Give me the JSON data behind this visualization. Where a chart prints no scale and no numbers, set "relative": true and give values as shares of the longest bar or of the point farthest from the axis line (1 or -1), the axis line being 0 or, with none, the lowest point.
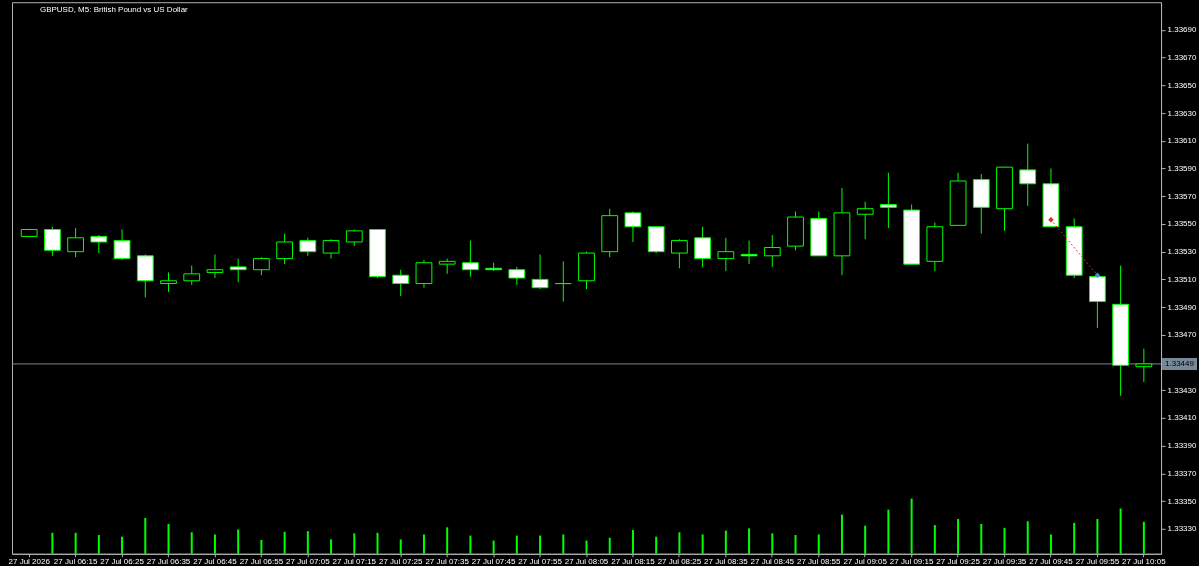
{
  "chart_data": [
    {
      "type": "candlestick",
      "title": "GBPUSD, M5: British Pound vs US Dollar",
      "categories": [
        "27 Jul 2026",
        null,
        "27 Jul 06:15",
        null,
        "27 Jul 06:25",
        null,
        "27 Jul 06:35",
        null,
        "27 Jul 06:45",
        null,
        "27 Jul 06:55",
        null,
        "27 Jul 07:05",
        null,
        "27 Jul 07:15",
        null,
        "27 Jul 07:25",
        null,
        "27 Jul 07:35",
        null,
        "27 Jul 07:45",
        null,
        "27 Jul 07:55",
        null,
        "27 Jul 08:05",
        null,
        "27 Jul 08:15",
        null,
        "27 Jul 08:25",
        null,
        "27 Jul 08:35",
        null,
        "27 Jul 08:45",
        null,
        "27 Jul 08:55",
        null,
        "27 Jul 09:05",
        null,
        "27 Jul 09:15",
        null,
        "27 Jul 09:25",
        null,
        "27 Jul 09:35",
        null,
        "27 Jul 09:45",
        null,
        "27 Jul 09:55",
        null,
        "27 Jul 10:05"
      ],
      "ohlc": [
        [
          1.33541,
          1.33546,
          1.33541,
          1.33546
        ],
        [
          1.33546,
          1.33548,
          1.33527,
          1.33531
        ],
        [
          1.3353,
          1.33547,
          1.33526,
          1.3354
        ],
        [
          1.33541,
          1.33542,
          1.33529,
          1.33537
        ],
        [
          1.33538,
          1.33546,
          1.33524,
          1.33525
        ],
        [
          1.33527,
          1.33528,
          1.33497,
          1.33509
        ],
        [
          1.33507,
          1.33515,
          1.33501,
          1.33509
        ],
        [
          1.33509,
          1.3352,
          1.33506,
          1.33514
        ],
        [
          1.33515,
          1.33528,
          1.33511,
          1.33517
        ],
        [
          1.33519,
          1.33525,
          1.33508,
          1.33517
        ],
        [
          1.33517,
          1.33526,
          1.33513,
          1.33525
        ],
        [
          1.33525,
          1.33543,
          1.33521,
          1.33537
        ],
        [
          1.33538,
          1.3354,
          1.33527,
          1.3353
        ],
        [
          1.33529,
          1.33539,
          1.33525,
          1.33538
        ],
        [
          1.33537,
          1.33546,
          1.33534,
          1.33545
        ],
        [
          1.33546,
          1.33546,
          1.33511,
          1.33512
        ],
        [
          1.33513,
          1.33517,
          1.33498,
          1.33507
        ],
        [
          1.33507,
          1.33524,
          1.33504,
          1.33522
        ],
        [
          1.33521,
          1.33525,
          1.33514,
          1.33523
        ],
        [
          1.33522,
          1.33538,
          1.33512,
          1.33517
        ],
        [
          1.33518,
          1.33522,
          1.33516,
          1.33517
        ],
        [
          1.33517,
          1.33519,
          1.33506,
          1.33511
        ],
        [
          1.3351,
          1.33528,
          1.33503,
          1.33504
        ],
        [
          1.33507,
          1.33523,
          1.33494,
          1.33507
        ],
        [
          1.33509,
          1.3353,
          1.33503,
          1.33529
        ],
        [
          1.3353,
          1.33561,
          1.33526,
          1.33556
        ],
        [
          1.33558,
          1.33559,
          1.33537,
          1.33548
        ],
        [
          1.33548,
          1.33548,
          1.33529,
          1.3353
        ],
        [
          1.33529,
          1.33539,
          1.33518,
          1.33538
        ],
        [
          1.3354,
          1.33548,
          1.33519,
          1.33525
        ],
        [
          1.33525,
          1.3354,
          1.33516,
          1.3353
        ],
        [
          1.33528,
          1.33538,
          1.33521,
          1.33527
        ],
        [
          1.33527,
          1.33542,
          1.33519,
          1.33533
        ],
        [
          1.33534,
          1.33559,
          1.33531,
          1.33555
        ],
        [
          1.33554,
          1.33559,
          1.33527,
          1.33527
        ],
        [
          1.33527,
          1.33576,
          1.33513,
          1.33558
        ],
        [
          1.33557,
          1.33566,
          1.33539,
          1.33561
        ],
        [
          1.33564,
          1.33587,
          1.33547,
          1.33562
        ],
        [
          1.3356,
          1.33564,
          1.33521,
          1.33521
        ],
        [
          1.33523,
          1.33551,
          1.33516,
          1.33548
        ],
        [
          1.33549,
          1.33587,
          1.33549,
          1.33581
        ],
        [
          1.33582,
          1.33586,
          1.33543,
          1.33562
        ],
        [
          1.33561,
          1.33591,
          1.33545,
          1.33591
        ],
        [
          1.33589,
          1.33608,
          1.33563,
          1.33579
        ],
        [
          1.33579,
          1.3359,
          1.33548,
          1.33548
        ],
        [
          1.33548,
          1.33554,
          1.33511,
          1.33513
        ],
        [
          1.33512,
          1.33512,
          1.33475,
          1.33494
        ],
        [
          1.33492,
          1.3352,
          1.33426,
          1.33448
        ],
        [
          1.33447,
          1.3346,
          1.33436,
          1.33449
        ]
      ],
      "color": "#00ff00",
      "colors": [
        "#000000",
        "#ffffff",
        "#000000",
        "#ffffff",
        "#ffffff",
        "#ffffff",
        "#000000",
        "#000000",
        "#000000",
        "#ffffff",
        "#000000",
        "#000000",
        "#ffffff",
        "#000000",
        "#000000",
        "#ffffff",
        "#ffffff",
        "#000000",
        "#000000",
        "#ffffff",
        "#ffffff",
        "#ffffff",
        "#ffffff",
        "#00ff00",
        "#000000",
        "#000000",
        "#ffffff",
        "#ffffff",
        "#000000",
        "#ffffff",
        "#000000",
        "#ffffff",
        "#000000",
        "#000000",
        "#ffffff",
        "#000000",
        "#000000",
        "#ffffff",
        "#ffffff",
        "#000000",
        "#000000",
        "#ffffff",
        "#000000",
        "#ffffff",
        "#ffffff",
        "#ffffff",
        "#ffffff",
        "#ffffff",
        "#000000"
      ],
      "ylim": [
        1.33312,
        1.3371
      ],
      "yticks": [
        {
          "value": 1.3333,
          "label": "1.33330"
        },
        {
          "value": 1.3335,
          "label": "1.33350"
        },
        {
          "value": 1.3337,
          "label": "1.33370"
        },
        {
          "value": 1.3339,
          "label": "1.33390"
        },
        {
          "value": 1.3341,
          "label": "1.33410"
        },
        {
          "value": 1.3343,
          "label": "1.33430"
        },
        {
          "value": 1.3347,
          "label": "1.33470"
        },
        {
          "value": 1.3349,
          "label": "1.33490"
        },
        {
          "value": 1.3351,
          "label": "1.33510"
        },
        {
          "value": 1.3353,
          "label": "1.33530"
        },
        {
          "value": 1.3355,
          "label": "1.33550"
        },
        {
          "value": 1.3357,
          "label": "1.33570"
        },
        {
          "value": 1.3359,
          "label": "1.33590"
        },
        {
          "value": 1.3361,
          "label": "1.33610"
        },
        {
          "value": 1.3363,
          "label": "1.33630"
        },
        {
          "value": 1.3365,
          "label": "1.33650"
        },
        {
          "value": 1.3367,
          "label": "1.33670"
        },
        {
          "value": 1.3369,
          "label": "1.33690"
        }
      ],
      "ref_lines": [
        {
          "axis": "y",
          "value": 1.33449,
          "label": "1.33449",
          "color": "#778899"
        }
      ],
      "series": [
        {
          "type": "line",
          "color": "#d83020",
          "line_style": "dotted",
          "x": [
            "27 Jul 09:45",
            "27 Jul 09:55"
          ],
          "values": [
            1.33553,
            1.33513
          ]
        },
        {
          "type": "scatter",
          "marker": "diamond",
          "colors": [
            "#e03020",
            "#3c8cdc"
          ],
          "x": [
            "27 Jul 09:45",
            "27 Jul 09:55"
          ],
          "values": [
            1.33553,
            1.33513
          ]
        }
      ]
    },
    {
      "type": "bar",
      "relative": true,
      "color": "#00ff00",
      "categories": [
        null,
        null,
        null,
        null,
        null,
        null,
        null,
        null,
        null,
        null,
        null,
        null,
        null,
        null,
        null,
        null,
        null,
        null,
        null,
        null,
        null,
        null,
        null,
        null,
        null,
        null,
        null,
        null,
        null,
        null,
        null,
        null,
        null,
        null,
        null,
        null,
        null,
        null,
        null,
        null,
        null,
        null,
        null,
        null,
        null,
        null,
        null,
        null,
        null
      ],
      "values": [
        null,
        0.38,
        0.38,
        0.34,
        0.31,
        0.65,
        0.54,
        0.39,
        0.35,
        0.44,
        0.25,
        0.4,
        0.41,
        0.26,
        0.37,
        0.38,
        0.26,
        0.35,
        0.48,
        0.33,
        0.24,
        0.33,
        0.33,
        0.35,
        0.24,
        0.29,
        0.43,
        0.31,
        0.39,
        0.35,
        0.42,
        0.46,
        0.37,
        0.34,
        0.35,
        0.71,
        0.51,
        0.8,
        1.0,
        0.52,
        0.63,
        0.54,
        0.47,
        0.59,
        0.35,
        0.56,
        0.63,
        0.82,
        0.58
      ]
    }
  ]
}
